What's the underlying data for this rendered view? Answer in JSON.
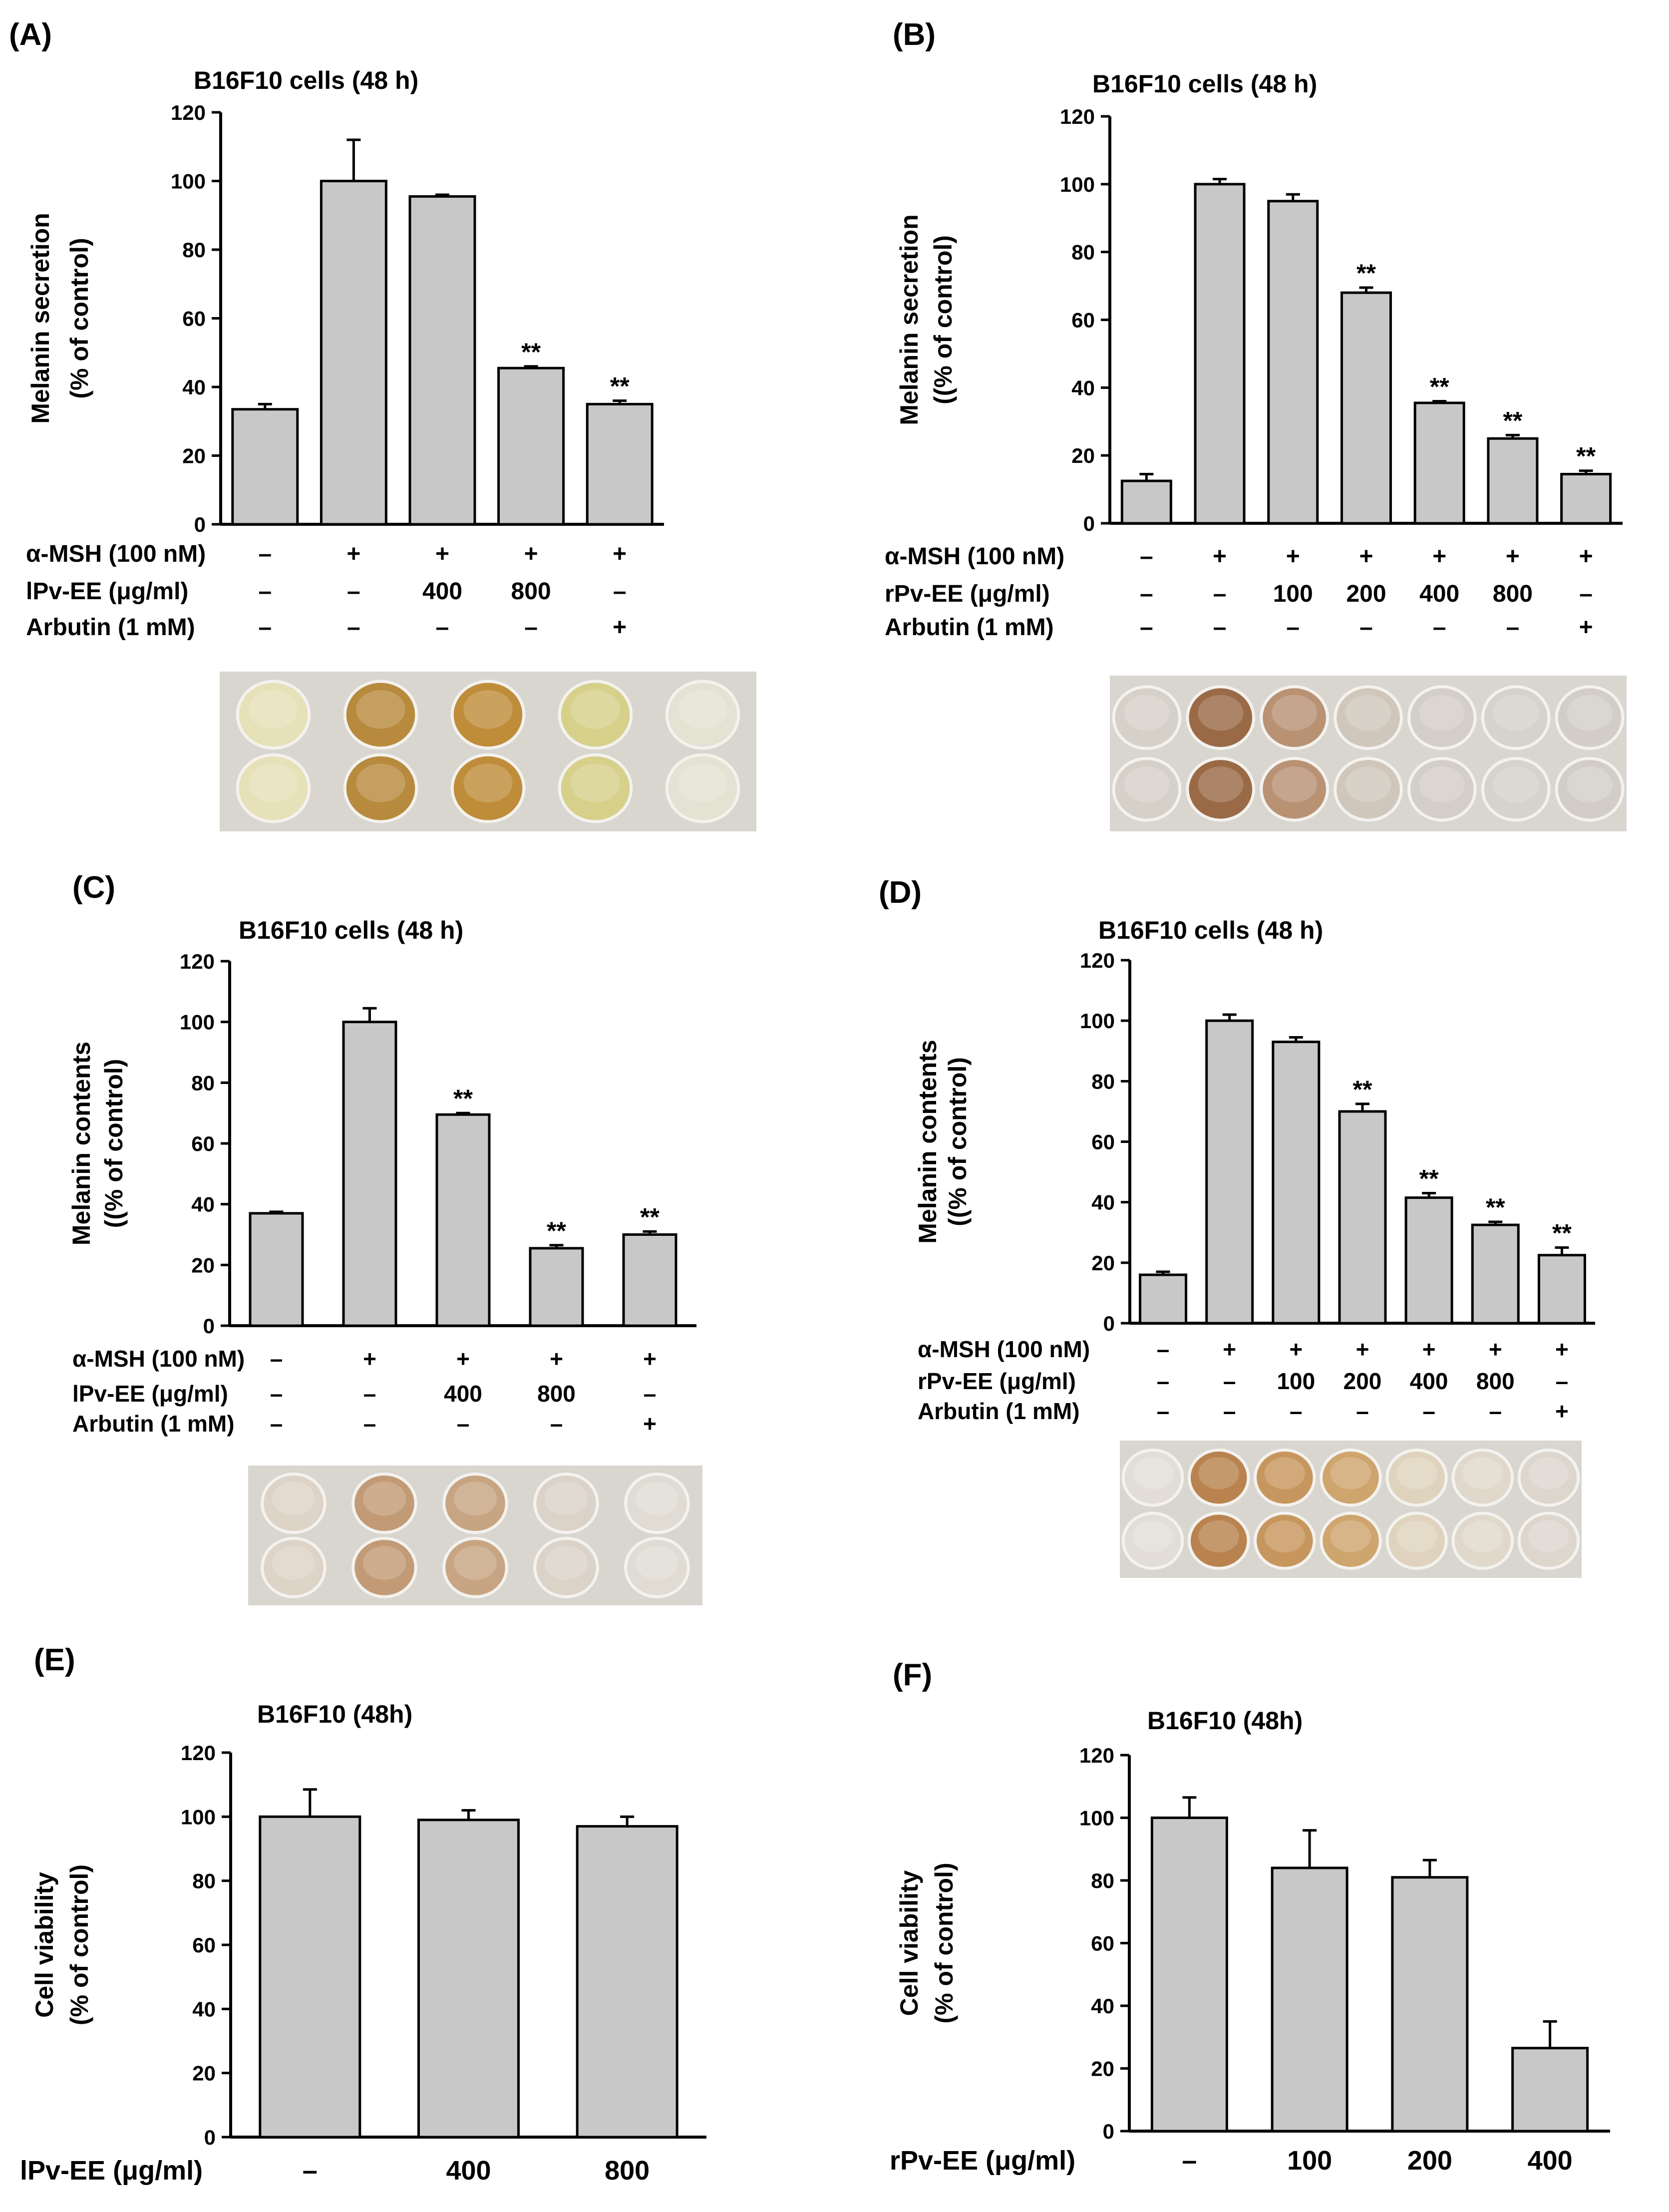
{
  "chart_data": [
    {
      "id": "A",
      "panel_label": "(A)",
      "type": "bar",
      "title": "B16F10 cells (48 h)",
      "ylabel_line1": "Melanin secretion",
      "ylabel_line2": "(% of control)",
      "ylim": [
        0,
        120
      ],
      "yticks": [
        0,
        20,
        40,
        60,
        80,
        100,
        120
      ],
      "values": [
        33.5,
        100,
        95.5,
        45.5,
        35
      ],
      "errors": [
        1.5,
        12,
        0.5,
        0.5,
        1
      ],
      "stars": [
        "",
        "",
        "",
        "**",
        "**"
      ],
      "conditions": [
        {
          "label": "α-MSH (100 nM)",
          "marks": [
            "–",
            "+",
            "+",
            "+",
            "+"
          ]
        },
        {
          "label": "lPv-EE (μg/ml)",
          "marks": [
            "–",
            "–",
            "400",
            "800",
            "–"
          ]
        },
        {
          "label": "Arbutin (1 mM)",
          "marks": [
            "–",
            "–",
            "–",
            "–",
            "+"
          ]
        }
      ],
      "wells": [
        "#e6e1b8",
        "#b78a3e",
        "#bf8d3a",
        "#d6d08a",
        "#e4e2d2"
      ]
    },
    {
      "id": "B",
      "panel_label": "(B)",
      "type": "bar",
      "title": "B16F10 cells (48 h)",
      "ylabel_line1": "Melanin secretion",
      "ylabel_line2": "((% of control)",
      "ylim": [
        0,
        120
      ],
      "yticks": [
        0,
        20,
        40,
        60,
        80,
        100,
        120
      ],
      "values": [
        12.5,
        100,
        95,
        68,
        35.5,
        25,
        14.5
      ],
      "errors": [
        2,
        1.5,
        2,
        1.5,
        0.5,
        1,
        1
      ],
      "stars": [
        "",
        "",
        "",
        "**",
        "**",
        "**",
        "**"
      ],
      "conditions": [
        {
          "label": "α-MSH (100 nM)",
          "marks": [
            "–",
            "+",
            "+",
            "+",
            "+",
            "+",
            "+"
          ]
        },
        {
          "label": "rPv-EE (μg/ml)",
          "marks": [
            "–",
            "–",
            "100",
            "200",
            "400",
            "800",
            "–"
          ]
        },
        {
          "label": "Arbutin (1 mM)",
          "marks": [
            "–",
            "–",
            "–",
            "–",
            "–",
            "–",
            "+"
          ]
        }
      ],
      "wells": [
        "#d6d1c8",
        "#9a6a46",
        "#b99274",
        "#cfc7bb",
        "#d3cec8",
        "#d6d2cd",
        "#d2cdc7"
      ]
    },
    {
      "id": "C",
      "panel_label": "(C)",
      "type": "bar",
      "title": "B16F10 cells (48 h)",
      "ylabel_line1": "Melanin contents",
      "ylabel_line2": "((% of control)",
      "ylim": [
        0,
        120
      ],
      "yticks": [
        0,
        20,
        40,
        60,
        80,
        100,
        120
      ],
      "values": [
        37,
        100,
        69.5,
        25.5,
        30
      ],
      "errors": [
        0.5,
        4.5,
        0.5,
        1,
        1
      ],
      "stars": [
        "",
        "",
        "**",
        "**",
        "**"
      ],
      "conditions": [
        {
          "label": "α-MSH (100 nM)",
          "marks": [
            "–",
            "+",
            "+",
            "+",
            "+"
          ]
        },
        {
          "label": "lPv-EE (μg/ml)",
          "marks": [
            "–",
            "–",
            "400",
            "800",
            "–"
          ]
        },
        {
          "label": "Arbutin (1 mM)",
          "marks": [
            "–",
            "–",
            "–",
            "–",
            "+"
          ]
        }
      ],
      "wells": [
        "#ddd3c6",
        "#c29b76",
        "#c7a583",
        "#dbd2c8",
        "#e0dbd3"
      ]
    },
    {
      "id": "D",
      "panel_label": "(D)",
      "type": "bar",
      "title": "B16F10 cells (48 h)",
      "ylabel_line1": "Melanin contents",
      "ylabel_line2": "((% of control)",
      "ylim": [
        0,
        120
      ],
      "yticks": [
        0,
        20,
        40,
        60,
        80,
        100,
        120
      ],
      "values": [
        16,
        100,
        93,
        70,
        41.5,
        32.5,
        22.5
      ],
      "errors": [
        1,
        2,
        1.5,
        2.5,
        1.5,
        1,
        2.5
      ],
      "stars": [
        "",
        "",
        "",
        "**",
        "**",
        "**",
        "**"
      ],
      "conditions": [
        {
          "label": "α-MSH (100 nM)",
          "marks": [
            "–",
            "+",
            "+",
            "+",
            "+",
            "+",
            "+"
          ]
        },
        {
          "label": "rPv-EE (μg/ml)",
          "marks": [
            "–",
            "–",
            "100",
            "200",
            "400",
            "800",
            "–"
          ]
        },
        {
          "label": "Arbutin (1 mM)",
          "marks": [
            "–",
            "–",
            "–",
            "–",
            "–",
            "–",
            "+"
          ]
        }
      ],
      "wells": [
        "#e2ddd6",
        "#b9834f",
        "#c7965e",
        "#cfa56e",
        "#dfd3bd",
        "#e0d8cb",
        "#dcd6cd"
      ]
    },
    {
      "id": "E",
      "panel_label": "(E)",
      "type": "bar",
      "title": "B16F10 (48h)",
      "ylabel_line1": "Cell viability",
      "ylabel_line2": "(% of control)",
      "ylim": [
        0,
        120
      ],
      "yticks": [
        0,
        20,
        40,
        60,
        80,
        100,
        120
      ],
      "values": [
        100,
        99,
        97
      ],
      "errors": [
        8.5,
        3,
        3
      ],
      "stars": [
        "",
        "",
        ""
      ],
      "conditions": [
        {
          "label": "lPv-EE (μg/ml)",
          "marks": [
            "–",
            "400",
            "800"
          ]
        }
      ],
      "wells": []
    },
    {
      "id": "F",
      "panel_label": "(F)",
      "type": "bar",
      "title": "B16F10 (48h)",
      "ylabel_line1": "Cell viability",
      "ylabel_line2": "(% of control)",
      "ylim": [
        0,
        120
      ],
      "yticks": [
        0,
        20,
        40,
        60,
        80,
        100,
        120
      ],
      "values": [
        100,
        84,
        81,
        26.5
      ],
      "errors": [
        6.5,
        12,
        5.5,
        8.5
      ],
      "stars": [
        "",
        "",
        "",
        ""
      ],
      "conditions": [
        {
          "label": "rPv-EE (μg/ml)",
          "marks": [
            "–",
            "100",
            "200",
            "400"
          ]
        }
      ],
      "wells": []
    }
  ]
}
